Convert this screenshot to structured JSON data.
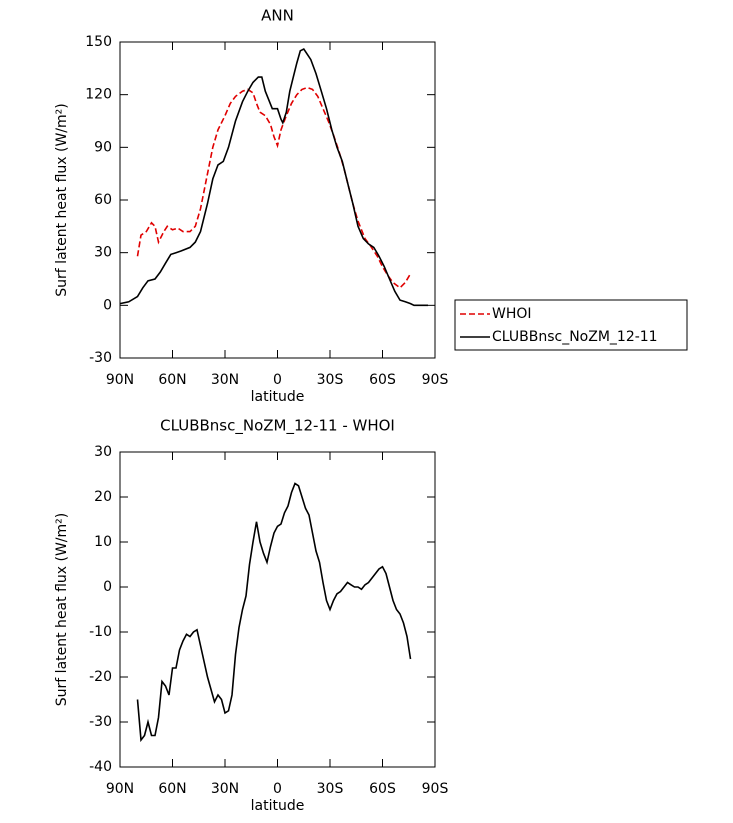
{
  "chart_data": [
    {
      "type": "line",
      "title": "ANN",
      "x_label": "latitude",
      "y_label": "Surf latent heat flux (W/m²)",
      "xlim": [
        90,
        -90
      ],
      "xticks": [
        {
          "value": 90,
          "label": "90N"
        },
        {
          "value": 60,
          "label": "60N"
        },
        {
          "value": 30,
          "label": "30N"
        },
        0,
        {
          "value": -30,
          "label": "30S"
        },
        {
          "value": -60,
          "label": "60S"
        },
        {
          "value": -90,
          "label": "90S"
        }
      ],
      "ylim": [
        -30,
        150
      ],
      "yticks": [
        -30,
        0,
        30,
        60,
        90,
        120,
        150
      ],
      "legend": "right",
      "series": [
        {
          "name": "WHOI",
          "color": "#e00000",
          "dashed": true,
          "x": [
            80,
            78,
            75,
            72,
            70,
            68,
            65,
            63,
            60,
            57,
            54,
            50,
            47,
            44,
            40,
            37,
            34,
            30,
            27,
            24,
            20,
            17,
            14,
            12,
            10,
            7,
            4,
            2,
            0,
            -2,
            -5,
            -8,
            -11,
            -14,
            -17,
            -20,
            -23,
            -26,
            -29,
            -32,
            -35,
            -38,
            -40,
            -43,
            -46,
            -50,
            -53,
            -57,
            -60,
            -63,
            -66,
            -70,
            -73,
            -76
          ],
          "values": [
            28,
            40,
            42,
            47,
            45,
            36,
            42,
            45,
            43,
            44,
            42,
            42,
            45,
            55,
            75,
            90,
            100,
            108,
            115,
            119,
            122,
            123,
            121,
            115,
            110,
            108,
            103,
            96,
            91,
            100,
            108,
            115,
            120,
            123,
            124,
            123,
            119,
            112,
            105,
            97,
            88,
            78,
            70,
            58,
            48,
            38,
            34,
            28,
            22,
            17,
            13,
            10,
            13,
            18
          ]
        },
        {
          "name": "CLUBBnsc_NoZM_12-11",
          "color": "#000000",
          "dashed": false,
          "x": [
            90,
            85,
            80,
            77,
            74,
            70,
            67,
            64,
            61,
            58,
            55,
            50,
            47,
            44,
            40,
            37,
            34,
            31,
            28,
            24,
            20,
            17,
            14,
            11,
            9,
            7,
            5,
            3,
            0,
            -2,
            -3,
            -5,
            -7,
            -9,
            -11,
            -13,
            -15,
            -17,
            -19,
            -22,
            -25,
            -28,
            -31,
            -34,
            -37,
            -40,
            -43,
            -46,
            -49,
            -52,
            -55,
            -58,
            -61,
            -64,
            -67,
            -70,
            -73,
            -76,
            -78,
            -82,
            -86
          ],
          "values": [
            1,
            2,
            5,
            10,
            14,
            15,
            19,
            24,
            29,
            30,
            31,
            33,
            36,
            42,
            58,
            72,
            80,
            82,
            90,
            105,
            116,
            122,
            127,
            130,
            130,
            122,
            117,
            112,
            112,
            106,
            104,
            110,
            122,
            130,
            138,
            145,
            146,
            143,
            140,
            132,
            122,
            112,
            100,
            90,
            82,
            70,
            58,
            45,
            38,
            35,
            33,
            28,
            22,
            15,
            8,
            3,
            2,
            1,
            0,
            0,
            0
          ]
        }
      ]
    },
    {
      "type": "line",
      "title": "CLUBBnsc_NoZM_12-11 - WHOI",
      "x_label": "latitude",
      "y_label": "Surf latent heat flux (W/m²)",
      "xlim": [
        90,
        -90
      ],
      "xticks": [
        {
          "value": 90,
          "label": "90N"
        },
        {
          "value": 60,
          "label": "60N"
        },
        {
          "value": 30,
          "label": "30N"
        },
        0,
        {
          "value": -30,
          "label": "30S"
        },
        {
          "value": -60,
          "label": "60S"
        },
        {
          "value": -90,
          "label": "90S"
        }
      ],
      "ylim": [
        -40,
        30
      ],
      "yticks": [
        -40,
        -30,
        -20,
        -10,
        0,
        10,
        20,
        30
      ],
      "color": "#000000",
      "x": [
        80,
        78,
        76,
        74,
        72,
        70,
        68,
        66,
        64,
        62,
        60,
        58,
        56,
        54,
        52,
        50,
        48,
        46,
        44,
        40,
        36,
        34,
        32,
        30,
        28,
        26,
        24,
        22,
        20,
        18,
        16,
        14,
        12,
        10,
        8,
        6,
        4,
        2,
        0,
        -2,
        -4,
        -6,
        -8,
        -10,
        -12,
        -14,
        -16,
        -18,
        -20,
        -22,
        -24,
        -26,
        -28,
        -30,
        -32,
        -34,
        -36,
        -38,
        -40,
        -42,
        -44,
        -46,
        -48,
        -50,
        -52,
        -54,
        -56,
        -58,
        -60,
        -62,
        -64,
        -66,
        -68,
        -70,
        -72,
        -74,
        -76
      ],
      "values": [
        -25,
        -34,
        -33,
        -30,
        -33,
        -33,
        -29,
        -21,
        -22,
        -24,
        -18,
        -18,
        -14,
        -12,
        -10.5,
        -11,
        -10,
        -9.5,
        -13,
        -20,
        -25.5,
        -24,
        -25,
        -28,
        -27.5,
        -24,
        -15,
        -9,
        -5,
        -2,
        5,
        10,
        14.5,
        10,
        7.5,
        5.5,
        9,
        12,
        13.5,
        14,
        16.5,
        18,
        21,
        23,
        22.5,
        20,
        17.5,
        16,
        12,
        8,
        5.5,
        1,
        -3,
        -5,
        -3,
        -1.5,
        -1,
        0,
        1,
        0.5,
        0,
        0,
        -0.5,
        0.5,
        1,
        2,
        3,
        4,
        4.5,
        3,
        0,
        -3,
        -5,
        -6,
        -8,
        -11,
        -16
      ]
    }
  ]
}
